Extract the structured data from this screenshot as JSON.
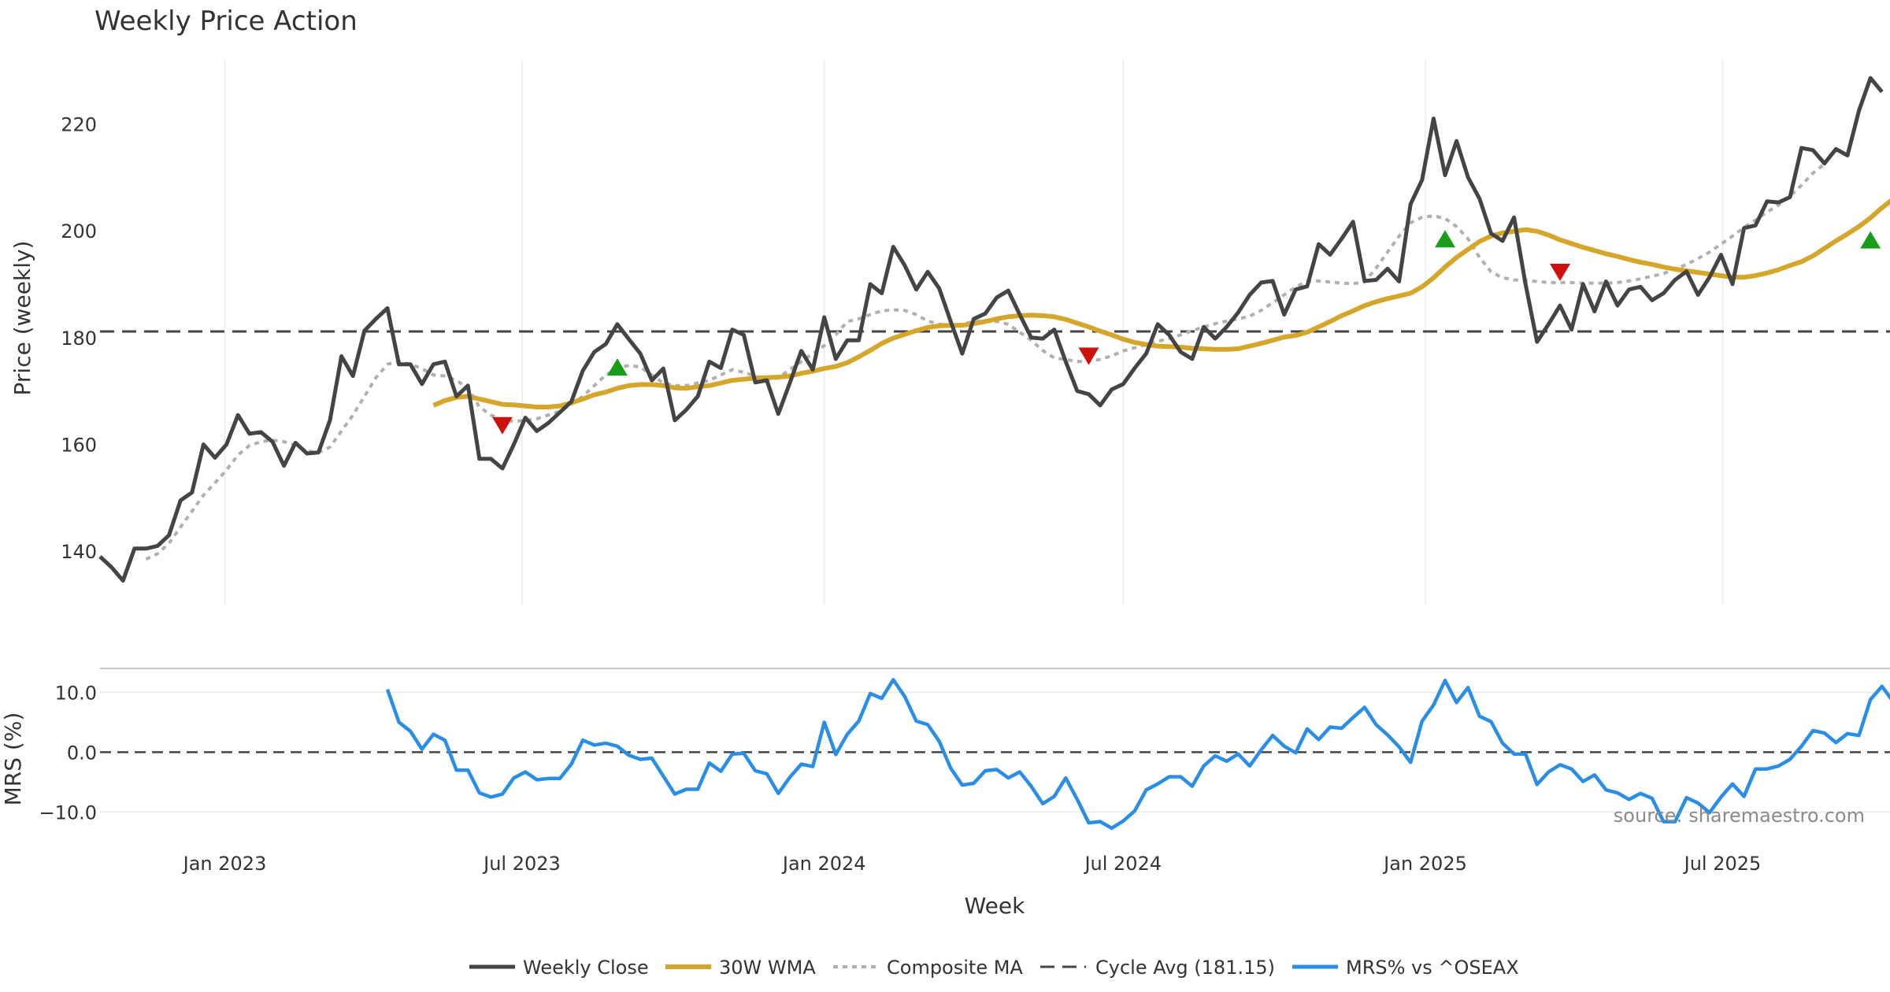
{
  "title": "Weekly Price Action",
  "source": "source: sharemaestro.com",
  "colors": {
    "close": "#444444",
    "wma": "#d4a62a",
    "composite": "#b0b0b0",
    "cycle": "#444444",
    "mrs": "#2b8ee6",
    "buy": "#1a9c1a",
    "sell": "#cc1111",
    "grid": "#ebebeb"
  },
  "chart_data": [
    {
      "type": "line",
      "title": "Weekly Price Action",
      "ylabel": "Price (weekly)",
      "ylim": [
        130,
        232
      ],
      "yticks": [
        140,
        160,
        180,
        200,
        220
      ],
      "cycle_avg": 181.15,
      "series": [
        {
          "name": "Weekly Close",
          "values": [
            139,
            137,
            134.5,
            140.5,
            140.5,
            141,
            143,
            149.5,
            151,
            160,
            157.5,
            160,
            165.5,
            162,
            162.3,
            160.5,
            156,
            160.3,
            158.3,
            158.5,
            164.5,
            176.5,
            172.8,
            181.3,
            183.5,
            185.5,
            175,
            175,
            171.3,
            175,
            175.5,
            169,
            171,
            157.3,
            157.3,
            155.5,
            160,
            165,
            162.5,
            164,
            166,
            168,
            173.8,
            177.3,
            178.8,
            182.5,
            179.7,
            177,
            172,
            174.2,
            164.5,
            166.5,
            169,
            175.5,
            174.3,
            181.5,
            180.5,
            171.6,
            172,
            165.7,
            171.5,
            177.5,
            174,
            183.8,
            176,
            179.5,
            179.5,
            190,
            188.3,
            197,
            193.5,
            189,
            192.3,
            189.2,
            183,
            177,
            183.5,
            184.5,
            187.5,
            188.8,
            184.3,
            180,
            179.8,
            181.5,
            175.5,
            170,
            169.4,
            167.3,
            170.3,
            171.3,
            174.3,
            177,
            182.5,
            180.5,
            177.3,
            176,
            182,
            179.8,
            182,
            184.7,
            188,
            190.3,
            190.6,
            184.3,
            189,
            189.6,
            197.5,
            195.5,
            198.5,
            201.7,
            190.6,
            190.8,
            192.9,
            190.5,
            205,
            209.5,
            221,
            210.4,
            216.8,
            210,
            206,
            199.5,
            198.1,
            202.5,
            190,
            179.2,
            182.5,
            186,
            181.5,
            190,
            184.9,
            190.5,
            186,
            189,
            189.5,
            187,
            188.3,
            190.8,
            192.4,
            188,
            191.3,
            195.5,
            190,
            200.5,
            201,
            205.5,
            205.3,
            206.3,
            215.5,
            215.1,
            212.6,
            215.3,
            214.1,
            222.5,
            228.6,
            226
          ]
        },
        {
          "name": "30W WMA",
          "values": [
            null,
            null,
            null,
            null,
            null,
            null,
            null,
            null,
            null,
            null,
            null,
            null,
            null,
            null,
            null,
            null,
            null,
            null,
            null,
            null,
            null,
            null,
            null,
            null,
            null,
            null,
            null,
            null,
            null,
            167.3,
            168.2,
            168.8,
            169,
            168.5,
            168,
            167.5,
            167.4,
            167.2,
            167,
            167,
            167.2,
            167.8,
            168.5,
            169.3,
            169.8,
            170.5,
            171,
            171.2,
            171.2,
            171,
            170.6,
            170.5,
            170.8,
            171,
            171.5,
            172,
            172.2,
            172.4,
            172.5,
            172.6,
            172.8,
            173.3,
            173.7,
            174.2,
            174.6,
            175.3,
            176.4,
            177.6,
            178.9,
            179.9,
            180.6,
            181.3,
            181.9,
            182.2,
            182.3,
            182.3,
            182.6,
            183,
            183.5,
            183.9,
            184.1,
            184.2,
            184.1,
            183.9,
            183.4,
            182.7,
            182,
            181.2,
            180.5,
            179.7,
            179.1,
            178.7,
            178.4,
            178.3,
            178.2,
            178,
            177.9,
            177.8,
            177.8,
            177.9,
            178.4,
            178.9,
            179.5,
            180.1,
            180.4,
            181,
            182,
            183,
            184.1,
            185,
            186,
            186.7,
            187.3,
            187.8,
            188.3,
            189.5,
            191.2,
            193.2,
            195,
            196.5,
            198,
            199,
            199.6,
            199.9,
            200.2,
            199.9,
            199.2,
            198.3,
            197.6,
            196.9,
            196.3,
            195.7,
            195.2,
            194.6,
            194.1,
            193.7,
            193.2,
            192.8,
            192.5,
            192.2,
            191.9,
            191.6,
            191.3,
            191.3,
            191.6,
            192.1,
            192.7,
            193.5,
            194.2,
            195.3,
            196.7,
            198.1,
            199.4,
            200.8,
            202.4,
            204.3,
            206
          ]
        },
        {
          "name": "Composite MA",
          "values": [
            null,
            null,
            null,
            null,
            138.5,
            139.5,
            141.5,
            144.5,
            147.5,
            150.5,
            152.8,
            155.2,
            158,
            159.8,
            160.5,
            160.8,
            160.5,
            159.8,
            158.8,
            158.5,
            159.5,
            162.5,
            165.5,
            169,
            172.5,
            175,
            175.5,
            175,
            174.2,
            173,
            172.8,
            172,
            170.5,
            167,
            165.5,
            164.6,
            164.3,
            164.5,
            164.8,
            165.5,
            166.2,
            167.5,
            169,
            171,
            173,
            174.3,
            174.8,
            174.5,
            173,
            171.5,
            171,
            171,
            171.5,
            172,
            173,
            174,
            173.5,
            172.8,
            172,
            172.5,
            174,
            175.5,
            177,
            178.5,
            180.5,
            183,
            183.5,
            184.3,
            185,
            185.2,
            185.1,
            184.3,
            183.1,
            182.5,
            182.3,
            182.5,
            183,
            183.2,
            183,
            182.5,
            181,
            179.5,
            177.6,
            176.2,
            175.9,
            175.5,
            175.6,
            175.9,
            176.6,
            177.5,
            178.1,
            178.7,
            179.3,
            179.8,
            180.5,
            181.3,
            182,
            182.6,
            183.1,
            183.5,
            184,
            185.1,
            186.5,
            188,
            189.5,
            190.5,
            190.6,
            190.4,
            190.2,
            190.1,
            190.4,
            193,
            196,
            199,
            201.5,
            202.5,
            202.8,
            202.3,
            200.8,
            198.5,
            195,
            192.3,
            191.2,
            190.8,
            190.7,
            190.5,
            190.3,
            190.3,
            190.3,
            190.2,
            190.2,
            190.2,
            190.3,
            190.6,
            191,
            191.5,
            192,
            192.8,
            193.7,
            194.8,
            196,
            197.5,
            199,
            200.6,
            202,
            203.5,
            204.8,
            206.5,
            208.5,
            210.8,
            212.5
          ]
        }
      ],
      "signals": [
        {
          "type": "sell",
          "index": 35,
          "value": 163.5
        },
        {
          "type": "buy",
          "index": 45,
          "value": 174.5
        },
        {
          "type": "sell",
          "index": 86,
          "value": 176.5
        },
        {
          "type": "buy",
          "index": 117,
          "value": 198.5
        },
        {
          "type": "sell",
          "index": 127,
          "value": 192.2
        },
        {
          "type": "buy",
          "index": 154,
          "value": 198.3
        }
      ]
    },
    {
      "type": "line",
      "ylabel": "MRS (%)",
      "xlabel": "Week",
      "ylim": [
        -13.5,
        14
      ],
      "yticks": [
        10.0,
        0.0,
        -10.0
      ],
      "ytick_labels": [
        "10.0",
        "0.0",
        "−10.0"
      ],
      "x_start": "2022-10-17",
      "x_step_days": 7,
      "xtick_dates": [
        "2023-01-01",
        "2023-07-01",
        "2024-01-01",
        "2024-07-01",
        "2025-01-01",
        "2025-07-01"
      ],
      "xtick_labels": [
        "Jan 2023",
        "Jul 2023",
        "Jan 2024",
        "Jul 2024",
        "Jan 2025",
        "Jul 2025"
      ],
      "series": [
        {
          "name": "MRS% vs ^OSEAX",
          "values": [
            null,
            null,
            null,
            null,
            null,
            null,
            null,
            null,
            null,
            null,
            null,
            null,
            null,
            null,
            null,
            null,
            null,
            null,
            null,
            null,
            null,
            null,
            null,
            null,
            null,
            10.5,
            5,
            3.5,
            0.5,
            3,
            2,
            -3,
            -3,
            -6.8,
            -7.5,
            -7,
            -4.3,
            -3.3,
            -4.6,
            -4.4,
            -4.4,
            -2,
            2,
            1.2,
            1.5,
            1,
            -0.5,
            -1.2,
            -1,
            -4,
            -7,
            -6.2,
            -6.2,
            -1.8,
            -3.2,
            -0.3,
            -0.2,
            -3.1,
            -3.6,
            -6.9,
            -4.2,
            -2,
            -2.4,
            5,
            -0.4,
            3,
            5.2,
            9.8,
            9,
            12.1,
            9.3,
            5.2,
            4.6,
            1.8,
            -2.7,
            -5.5,
            -5.2,
            -3.1,
            -2.9,
            -4.3,
            -3.3,
            -5.7,
            -8.6,
            -7.4,
            -4.3,
            -7.9,
            -11.8,
            -11.6,
            -12.7,
            -11.5,
            -9.8,
            -6.3,
            -5.3,
            -4.1,
            -4.1,
            -5.7,
            -2.3,
            -0.6,
            -1.5,
            -0.3,
            -2.3,
            0.4,
            2.8,
            1,
            -0.1,
            3.9,
            2.1,
            4.2,
            4,
            5.8,
            7.5,
            4.6,
            2.9,
            0.9,
            -1.7,
            5.2,
            7.9,
            12,
            8.3,
            10.8,
            6,
            5.1,
            1.5,
            -0.3,
            -0.3,
            -5.4,
            -3.3,
            -2.1,
            -2.8,
            -4.9,
            -3.8,
            -6.3,
            -6.8,
            -7.9,
            -6.9,
            -7.7,
            -11.6,
            -11.6,
            -7.6,
            -8.5,
            -10.1,
            -7.5,
            -5.3,
            -7.4,
            -2.8,
            -2.8,
            -2.3,
            -1.2,
            1,
            3.6,
            3.2,
            1.6,
            3.1,
            2.8,
            8.8,
            11,
            8.4
          ]
        }
      ]
    }
  ],
  "legend": {
    "items": [
      {
        "label": "Weekly Close"
      },
      {
        "label": "30W WMA"
      },
      {
        "label": "Composite MA"
      },
      {
        "label": "Cycle Avg (181.15)"
      },
      {
        "label": "MRS% vs ^OSEAX"
      }
    ]
  }
}
